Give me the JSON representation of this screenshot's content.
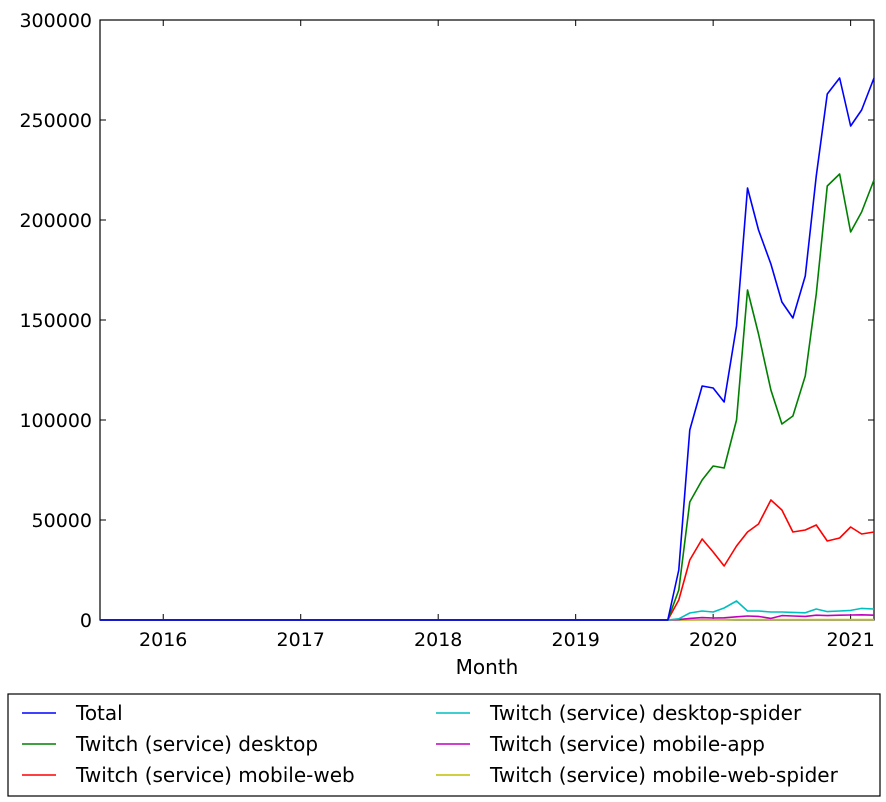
{
  "chart_data": {
    "type": "line",
    "title": "",
    "xlabel": "Month",
    "ylabel": "",
    "xlim": [
      2015.54,
      2021.17
    ],
    "ylim": [
      0,
      300000
    ],
    "x_ticks": [
      {
        "value": 2016.0,
        "label": "2016"
      },
      {
        "value": 2017.0,
        "label": "2017"
      },
      {
        "value": 2018.0,
        "label": "2018"
      },
      {
        "value": 2019.0,
        "label": "2019"
      },
      {
        "value": 2020.0,
        "label": "2020"
      },
      {
        "value": 2021.0,
        "label": "2021"
      }
    ],
    "y_ticks": [
      {
        "value": 0,
        "label": "0"
      },
      {
        "value": 50000,
        "label": "50000"
      },
      {
        "value": 100000,
        "label": "100000"
      },
      {
        "value": 150000,
        "label": "150000"
      },
      {
        "value": 200000,
        "label": "200000"
      },
      {
        "value": 250000,
        "label": "250000"
      },
      {
        "value": 300000,
        "label": "300000"
      }
    ],
    "grid": false,
    "legend_position": "bottom-outside",
    "x": [
      2015.54,
      2019.67,
      2019.75,
      2019.83,
      2019.92,
      2020.0,
      2020.08,
      2020.17,
      2020.25,
      2020.33,
      2020.42,
      2020.5,
      2020.58,
      2020.67,
      2020.75,
      2020.83,
      2020.92,
      2021.0,
      2021.08,
      2021.17
    ],
    "series": [
      {
        "name": "Total",
        "color": "#0000ff",
        "values": [
          0,
          0,
          25000,
          95000,
          117000,
          116000,
          109000,
          147000,
          216000,
          195000,
          178000,
          159000,
          151000,
          172000,
          222000,
          263000,
          271000,
          247000,
          255000,
          271000
        ]
      },
      {
        "name": "Twitch (service) desktop",
        "color": "#008000",
        "values": [
          0,
          0,
          15000,
          59000,
          70000,
          77000,
          76000,
          100000,
          165000,
          143000,
          115000,
          98000,
          102000,
          122000,
          163000,
          217000,
          223000,
          194000,
          204000,
          220000
        ]
      },
      {
        "name": "Twitch (service) mobile-web",
        "color": "#ff0000",
        "values": [
          0,
          0,
          10000,
          30000,
          40500,
          34000,
          27000,
          37000,
          44000,
          48000,
          60000,
          55000,
          44000,
          45000,
          47500,
          39500,
          41000,
          46500,
          43000,
          44000
        ]
      },
      {
        "name": "Twitch (service) desktop-spider",
        "color": "#00bfbf",
        "values": [
          0,
          0,
          600,
          3500,
          4500,
          4000,
          6000,
          9500,
          4500,
          4500,
          4000,
          4000,
          3800,
          3600,
          5500,
          4200,
          4500,
          4800,
          5800,
          5500
        ]
      },
      {
        "name": "Twitch (service) mobile-app",
        "color": "#bf00bf",
        "values": [
          0,
          0,
          200,
          800,
          1200,
          1000,
          1100,
          1600,
          2000,
          1800,
          800,
          2200,
          2000,
          1800,
          2400,
          2200,
          2400,
          2500,
          2600,
          2400
        ]
      },
      {
        "name": "Twitch (service) mobile-web-spider",
        "color": "#bfbf00",
        "values": [
          0,
          0,
          50,
          100,
          150,
          150,
          150,
          200,
          200,
          200,
          200,
          200,
          200,
          200,
          200,
          200,
          200,
          200,
          200,
          200
        ]
      }
    ]
  }
}
